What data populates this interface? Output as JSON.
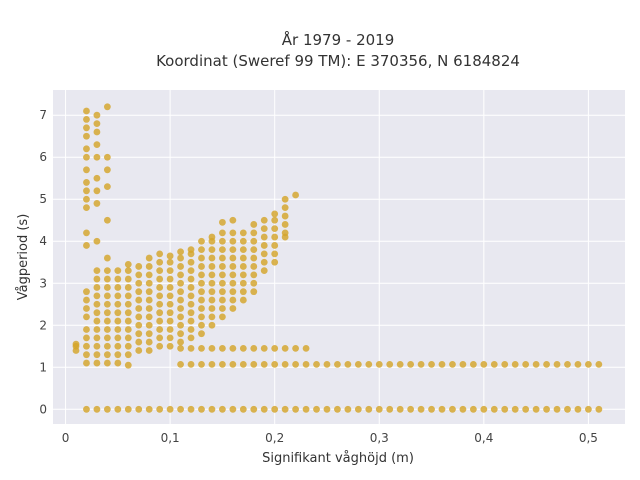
{
  "chart_data": {
    "type": "scatter",
    "title": "År 1979 - 2019",
    "subtitle": "Koordinat (Sweref 99 TM): E 370356, N 6184824",
    "xlabel": "Signifikant våghöjd (m)",
    "ylabel": "Vågperiod (s)",
    "xlim": [
      -0.012,
      0.535
    ],
    "ylim": [
      -0.35,
      7.6
    ],
    "x_ticks": [
      0,
      0.1,
      0.2,
      0.3,
      0.4,
      0.5
    ],
    "x_tick_labels": [
      "0",
      "0,1",
      "0,2",
      "0,3",
      "0,4",
      "0,5"
    ],
    "y_ticks": [
      0,
      1,
      2,
      3,
      4,
      5,
      6,
      7
    ],
    "y_tick_labels": [
      "0",
      "1",
      "2",
      "3",
      "4",
      "5",
      "6",
      "7"
    ],
    "grid": true,
    "marker_color": "#d4a52a",
    "background_color": "#e8e8f0",
    "series": [
      {
        "columns": [
          {
            "x": 0.01,
            "y": [
              1.4,
              1.5,
              1.55
            ]
          },
          {
            "x": 0.02,
            "y": [
              1.1,
              1.3,
              1.5,
              1.7,
              1.9,
              2.2,
              2.4,
              2.6,
              2.8,
              3.9,
              4.2,
              4.8,
              5.0,
              5.2,
              5.4,
              5.7,
              6.0,
              6.2,
              6.5,
              6.7,
              6.9,
              7.1
            ]
          },
          {
            "x": 0.03,
            "y": [
              1.1,
              1.3,
              1.5,
              1.7,
              1.9,
              2.1,
              2.3,
              2.5,
              2.7,
              2.9,
              3.1,
              3.3,
              4.0,
              4.9,
              5.2,
              5.5,
              6.0,
              6.3,
              6.6,
              6.8,
              7.0
            ]
          },
          {
            "x": 0.04,
            "y": [
              1.1,
              1.3,
              1.5,
              1.7,
              1.9,
              2.1,
              2.3,
              2.5,
              2.7,
              2.9,
              3.1,
              3.3,
              3.6,
              4.5,
              5.3,
              5.7,
              6.0,
              7.2
            ]
          },
          {
            "x": 0.05,
            "y": [
              1.1,
              1.3,
              1.5,
              1.7,
              1.9,
              2.1,
              2.3,
              2.5,
              2.7,
              2.9,
              3.1,
              3.3
            ]
          },
          {
            "x": 0.06,
            "y": [
              1.05,
              1.3,
              1.5,
              1.7,
              1.9,
              2.1,
              2.3,
              2.5,
              2.7,
              2.9,
              3.1,
              3.3,
              3.45
            ]
          },
          {
            "x": 0.07,
            "y": [
              1.4,
              1.6,
              1.8,
              2.0,
              2.2,
              2.4,
              2.6,
              2.8,
              3.0,
              3.2,
              3.4
            ]
          },
          {
            "x": 0.08,
            "y": [
              1.4,
              1.6,
              1.8,
              2.0,
              2.2,
              2.4,
              2.6,
              2.8,
              3.0,
              3.2,
              3.4,
              3.6
            ]
          },
          {
            "x": 0.09,
            "y": [
              1.5,
              1.7,
              1.9,
              2.1,
              2.3,
              2.5,
              2.7,
              2.9,
              3.1,
              3.3,
              3.5,
              3.7
            ]
          },
          {
            "x": 0.1,
            "y": [
              1.5,
              1.7,
              1.9,
              2.1,
              2.3,
              2.5,
              2.7,
              2.9,
              3.1,
              3.3,
              3.5,
              3.65
            ]
          },
          {
            "x": 0.11,
            "y": [
              1.6,
              1.8,
              2.0,
              2.2,
              2.4,
              2.6,
              2.8,
              3.0,
              3.2,
              3.4,
              3.6,
              3.75
            ]
          },
          {
            "x": 0.12,
            "y": [
              1.7,
              1.9,
              2.1,
              2.3,
              2.5,
              2.7,
              2.9,
              3.1,
              3.3,
              3.5,
              3.7,
              3.8
            ]
          },
          {
            "x": 0.13,
            "y": [
              1.8,
              2.0,
              2.2,
              2.4,
              2.6,
              2.8,
              3.0,
              3.2,
              3.4,
              3.6,
              3.8,
              4.0
            ]
          },
          {
            "x": 0.14,
            "y": [
              2.0,
              2.2,
              2.4,
              2.6,
              2.8,
              3.0,
              3.2,
              3.4,
              3.6,
              3.8,
              4.0,
              4.1
            ]
          },
          {
            "x": 0.15,
            "y": [
              2.2,
              2.4,
              2.6,
              2.8,
              3.0,
              3.2,
              3.4,
              3.6,
              3.8,
              4.0,
              4.2,
              4.45
            ]
          },
          {
            "x": 0.16,
            "y": [
              2.4,
              2.6,
              2.8,
              3.0,
              3.2,
              3.4,
              3.6,
              3.8,
              4.0,
              4.2,
              4.5
            ]
          },
          {
            "x": 0.17,
            "y": [
              2.6,
              2.8,
              3.0,
              3.2,
              3.4,
              3.6,
              3.8,
              4.0,
              4.2
            ]
          },
          {
            "x": 0.18,
            "y": [
              2.8,
              3.0,
              3.2,
              3.4,
              3.6,
              3.8,
              4.0,
              4.2,
              4.4
            ]
          },
          {
            "x": 0.19,
            "y": [
              3.3,
              3.5,
              3.7,
              3.9,
              4.1,
              4.3,
              4.5
            ]
          },
          {
            "x": 0.2,
            "y": [
              3.5,
              3.7,
              3.9,
              4.1,
              4.3,
              4.5,
              4.65
            ]
          },
          {
            "x": 0.21,
            "y": [
              4.1,
              4.2,
              4.4,
              4.6,
              4.8,
              5.0
            ]
          },
          {
            "x": 0.22,
            "y": [
              5.1
            ]
          }
        ]
      },
      {
        "name_hidden": "",
        "x": [
          0.11,
          0.12,
          0.13,
          0.14,
          0.15,
          0.16,
          0.17,
          0.18,
          0.19,
          0.2,
          0.21,
          0.22,
          0.23
        ],
        "y": [
          1.45,
          1.45,
          1.45,
          1.45,
          1.45,
          1.45,
          1.45,
          1.45,
          1.45,
          1.45,
          1.45,
          1.45,
          1.45
        ]
      },
      {
        "x": [
          0.11,
          0.12,
          0.13,
          0.14,
          0.15,
          0.16,
          0.17,
          0.18,
          0.19,
          0.2,
          0.21,
          0.22,
          0.23,
          0.24,
          0.25,
          0.26,
          0.27,
          0.28,
          0.29,
          0.3,
          0.31,
          0.32,
          0.33,
          0.34,
          0.35,
          0.36,
          0.37,
          0.38,
          0.39,
          0.4,
          0.41,
          0.42,
          0.43,
          0.44,
          0.45,
          0.46,
          0.47,
          0.48,
          0.49,
          0.5,
          0.51
        ],
        "y_constant": 1.07
      },
      {
        "x": [
          0.02,
          0.03,
          0.04,
          0.05,
          0.06,
          0.07,
          0.08,
          0.09,
          0.1,
          0.11,
          0.12,
          0.13,
          0.14,
          0.15,
          0.16,
          0.17,
          0.18,
          0.19,
          0.2,
          0.21,
          0.22,
          0.23,
          0.24,
          0.25,
          0.26,
          0.27,
          0.28,
          0.29,
          0.3,
          0.31,
          0.32,
          0.33,
          0.34,
          0.35,
          0.36,
          0.37,
          0.38,
          0.39,
          0.4,
          0.41,
          0.42,
          0.43,
          0.44,
          0.45,
          0.46,
          0.47,
          0.48,
          0.49,
          0.5,
          0.51
        ],
        "y_constant": 0
      }
    ]
  }
}
